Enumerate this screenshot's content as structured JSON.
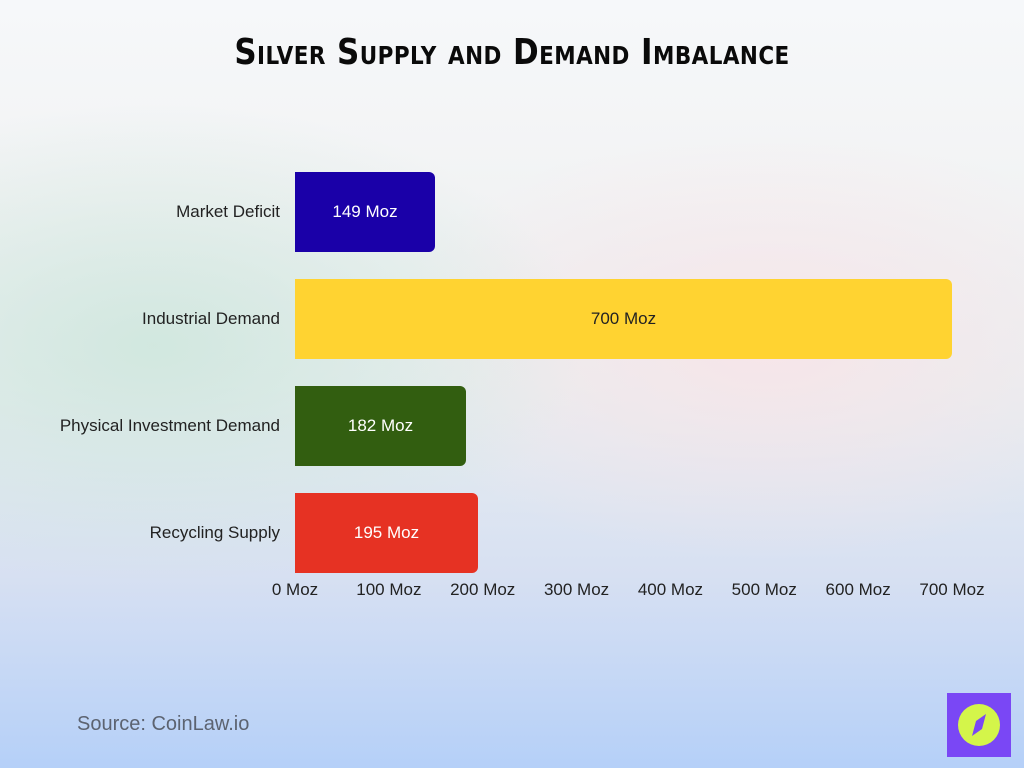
{
  "title": "Silver Supply and Demand Imbalance",
  "source": "Source: CoinLaw.io",
  "logo": {
    "icon": "compass-icon",
    "bg_color": "#7a47f5",
    "fg_color": "#d4f54a"
  },
  "chart_data": {
    "type": "bar",
    "orientation": "horizontal",
    "title": "Silver Supply and Demand Imbalance",
    "xlabel": "",
    "ylabel": "",
    "unit": "Moz",
    "categories": [
      "Market Deficit",
      "Industrial Demand",
      "Physical Investment Demand",
      "Recycling Supply"
    ],
    "values": [
      149,
      700,
      182,
      195
    ],
    "value_labels": [
      "149 Moz",
      "700 Moz",
      "182 Moz",
      "195 Moz"
    ],
    "colors": [
      "#1a00a8",
      "#ffd331",
      "#325e10",
      "#e63223"
    ],
    "label_colors": [
      "#ffffff",
      "#222222",
      "#ffffff",
      "#ffffff"
    ],
    "xlim": [
      0,
      700
    ],
    "x_ticks": [
      "0 Moz",
      "100 Moz",
      "200 Moz",
      "300 Moz",
      "400 Moz",
      "500 Moz",
      "600 Moz",
      "700 Moz"
    ],
    "grid": false,
    "legend": "none"
  }
}
